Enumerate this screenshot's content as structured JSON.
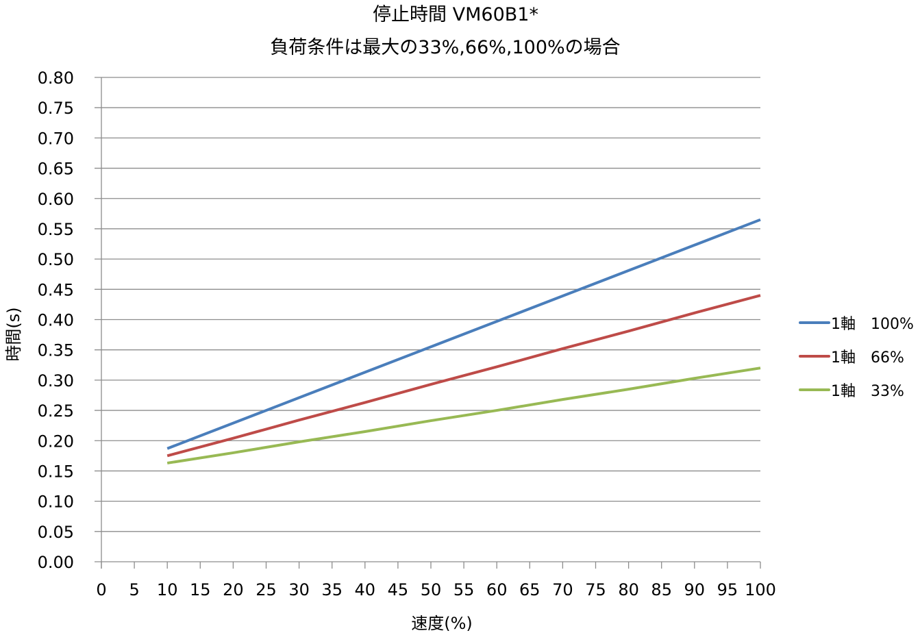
{
  "chart_data": {
    "type": "line",
    "title": [
      "停止時間 VM60B1*",
      "負荷条件は最大の33%,66%,100%の場合"
    ],
    "xlabel": "速度(%)",
    "ylabel": "時間(s)",
    "xlim": [
      0,
      100
    ],
    "ylim": [
      0,
      0.8
    ],
    "grid": true,
    "legend_position": "right",
    "x_ticks": [
      "0",
      "5",
      "10",
      "15",
      "20",
      "25",
      "30",
      "35",
      "40",
      "45",
      "50",
      "55",
      "60",
      "65",
      "70",
      "75",
      "80",
      "85",
      "90",
      "95",
      "100"
    ],
    "y_ticks": [
      "0.00",
      "0.05",
      "0.10",
      "0.15",
      "0.20",
      "0.25",
      "0.30",
      "0.35",
      "0.40",
      "0.45",
      "0.50",
      "0.55",
      "0.60",
      "0.65",
      "0.70",
      "0.75",
      "0.80"
    ],
    "x": [
      10,
      20,
      30,
      40,
      50,
      60,
      70,
      80,
      90,
      100
    ],
    "series": [
      {
        "name": "1軸　100%",
        "color": "#4a7ebb",
        "values": [
          0.187,
          0.229,
          0.271,
          0.313,
          0.355,
          0.397,
          0.439,
          0.481,
          0.523,
          0.565
        ]
      },
      {
        "name": "1軸　66%",
        "color": "#be4b48",
        "values": [
          0.175,
          0.204,
          0.234,
          0.263,
          0.293,
          0.322,
          0.352,
          0.381,
          0.411,
          0.44
        ]
      },
      {
        "name": "1軸　33%",
        "color": "#98b954",
        "values": [
          0.163,
          0.18,
          0.198,
          0.215,
          0.233,
          0.25,
          0.268,
          0.285,
          0.303,
          0.32
        ]
      }
    ]
  }
}
